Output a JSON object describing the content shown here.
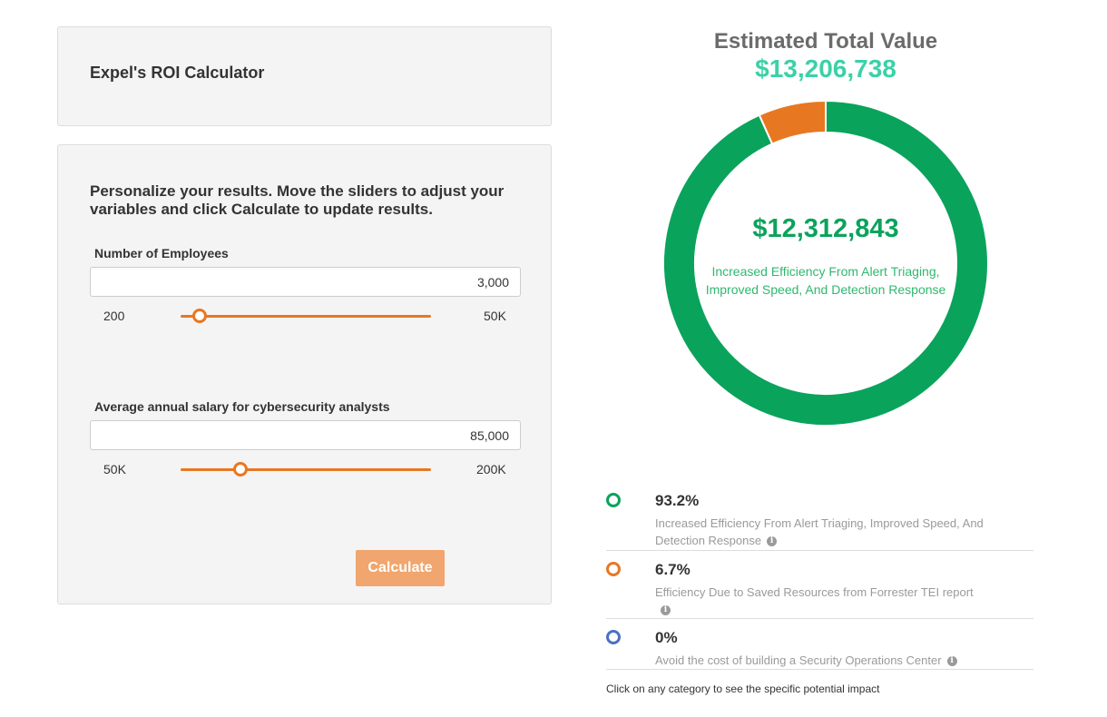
{
  "calculator": {
    "title": "Expel's ROI Calculator",
    "intro": "Personalize your results. Move the sliders to adjust your variables and click Calculate to update results.",
    "employees": {
      "label": "Number of Employees",
      "value": "3,000",
      "min_label": "200",
      "max_label": "50K",
      "slider_position": 0.075
    },
    "salary": {
      "label": "Average annual salary for cybersecurity analysts",
      "value": "85,000",
      "min_label": "50K",
      "max_label": "200K",
      "slider_position": 0.24
    },
    "calculate_label": "Calculate"
  },
  "results": {
    "title": "Estimated Total Value",
    "total": "$13,206,738",
    "center_value": "$12,312,843",
    "center_label": "Increased Efficiency From Alert Triaging, Improved Speed, And Detection Response",
    "legend": [
      {
        "pct": "93.2%",
        "desc": "Increased Efficiency From Alert Triaging, Improved Speed, And Detection Response",
        "color": "#0aa35c"
      },
      {
        "pct": "6.7%",
        "desc": "Efficiency Due to Saved Resources from Forrester TEI report",
        "color": "#e87722"
      },
      {
        "pct": "0%",
        "desc": "Avoid the cost of building a Security Operations Center",
        "color": "#4a72c4"
      }
    ],
    "footnote": "Click on any category to see the specific potential impact"
  },
  "chart_data": {
    "type": "pie",
    "categories": [
      "Increased Efficiency From Alert Triaging, Improved Speed, And Detection Response",
      "Efficiency Due to Saved Resources from Forrester TEI report",
      "Avoid the cost of building a Security Operations Center"
    ],
    "values": [
      93.2,
      6.7,
      0
    ],
    "colors": [
      "#0aa35c",
      "#e87722",
      "#4a72c4"
    ]
  }
}
